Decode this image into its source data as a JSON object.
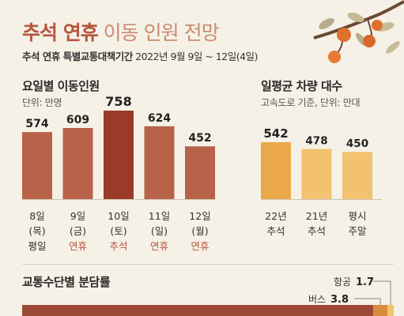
{
  "header": {
    "title_main": "추석 연휴",
    "title_sub": "이동 인원 전망",
    "subtitle_bold": "추석 연휴 특별교통대책기간",
    "subtitle_range": "2022년 9월 9일 ~ 12일(4일)"
  },
  "chart_data": [
    {
      "type": "bar",
      "title": "요일별 이동인원",
      "unit": "단위: 만명",
      "categories": [
        "8일 (목) 평일",
        "9일 (금) 연휴",
        "10일 (토) 추석",
        "11일 (일) 연휴",
        "12일 (월) 연휴"
      ],
      "x": [
        {
          "date": "8일",
          "dow": "(목)",
          "kind": "평일"
        },
        {
          "date": "9일",
          "dow": "(금)",
          "kind": "연휴"
        },
        {
          "date": "10일",
          "dow": "(토)",
          "kind": "추석"
        },
        {
          "date": "11일",
          "dow": "(일)",
          "kind": "연휴"
        },
        {
          "date": "12일",
          "dow": "(월)",
          "kind": "연휴"
        }
      ],
      "values": [
        574,
        609,
        758,
        624,
        452
      ],
      "value_labels": [
        "574",
        "609",
        "758",
        "624",
        "452"
      ],
      "highlight_index": 2,
      "colors": {
        "bar": "#b8624a",
        "highlight": "#993a2a",
        "kind_plain": "#2a2a2a",
        "kind_holiday": "#b5563c"
      }
    },
    {
      "type": "bar",
      "title": "일평균 차량 대수",
      "unit": "고속도로 기준, 단위: 만대",
      "categories": [
        "22년 추석",
        "21년 추석",
        "평시 주말"
      ],
      "x": [
        {
          "line1": "22년",
          "line2": "추석"
        },
        {
          "line1": "21년",
          "line2": "추석"
        },
        {
          "line1": "평시",
          "line2": "주말"
        }
      ],
      "values": [
        542,
        478,
        450
      ],
      "value_labels": [
        "542",
        "478",
        "450"
      ],
      "highlight_index": 0,
      "colors": {
        "bar": "#f2c270",
        "highlight": "#eaa84a"
      }
    },
    {
      "type": "bar",
      "title": "교통수단별 분담률",
      "series": [
        {
          "name": "버스",
          "value": 3.8,
          "label": "3.8"
        },
        {
          "name": "항공",
          "value": 1.7,
          "label": "1.7"
        }
      ],
      "colors": {
        "main": "#9c4a36",
        "bus": "#d98b3c",
        "air": "#f0c46b"
      }
    }
  ]
}
